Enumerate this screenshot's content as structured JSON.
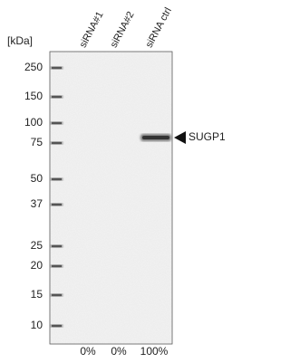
{
  "unit_label": "[kDa]",
  "markers": [
    "250",
    "150",
    "100",
    "75",
    "50",
    "37",
    "25",
    "20",
    "15",
    "10"
  ],
  "lanes": [
    "siRNA#1",
    "siRNA#2",
    "siRNA ctrl"
  ],
  "target": "SUGP1",
  "percentages": [
    "0%",
    "0%",
    "100%"
  ]
}
